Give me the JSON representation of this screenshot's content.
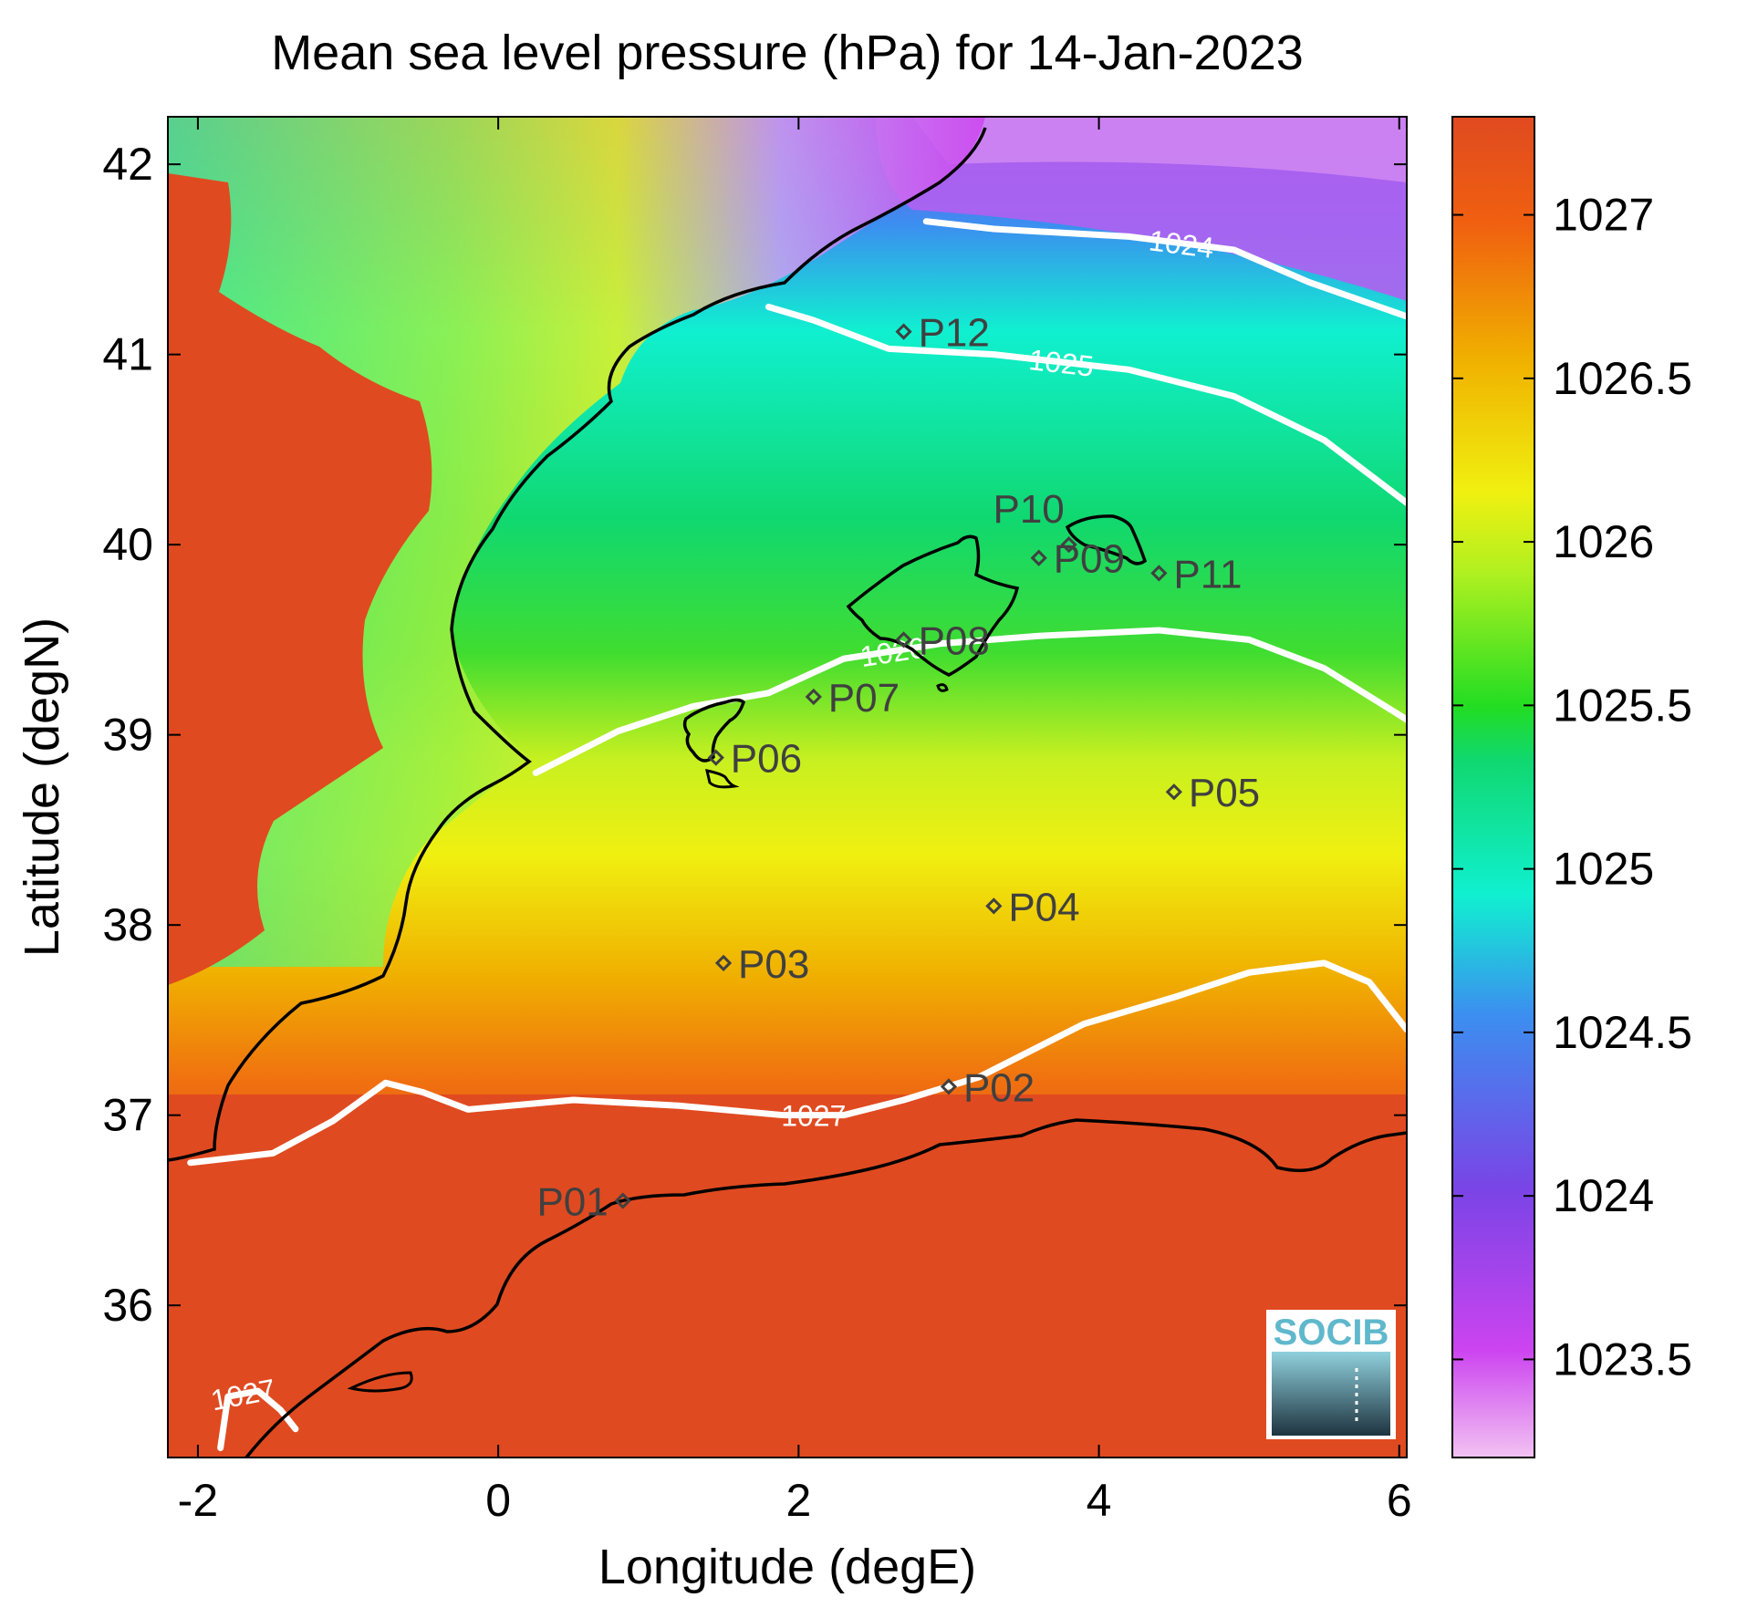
{
  "chart_data": {
    "type": "heatmap",
    "title": "Mean sea level pressure (hPa) for 14-Jan-2023",
    "xlabel": "Longitude (degE)",
    "ylabel": "Latitude (degN)",
    "xlim": [
      -2.2,
      6.05
    ],
    "ylim": [
      35.2,
      42.25
    ],
    "x_ticks": [
      -2,
      0,
      2,
      4,
      6
    ],
    "y_ticks": [
      36,
      37,
      38,
      39,
      40,
      41,
      42
    ],
    "colorbar": {
      "range": [
        1023.2,
        1027.3
      ],
      "ticks": [
        1023.5,
        1024,
        1024.5,
        1025,
        1025.5,
        1026,
        1026.5,
        1027
      ],
      "colors": [
        "#f2c2f2",
        "#cc44f0",
        "#7a44e6",
        "#3c8ef0",
        "#10f0d0",
        "#10d870",
        "#22dd22",
        "#b0f020",
        "#f0f010",
        "#f0b000",
        "#f06010",
        "#e04a20"
      ]
    },
    "contours": [
      {
        "level": 1024,
        "label": "1024",
        "points": [
          [
            2.85,
            41.7
          ],
          [
            3.3,
            41.66
          ],
          [
            4.2,
            41.62
          ],
          [
            4.9,
            41.55
          ],
          [
            5.4,
            41.38
          ],
          [
            6.05,
            41.2
          ]
        ]
      },
      {
        "level": 1025,
        "label": "1025",
        "points": [
          [
            1.8,
            41.25
          ],
          [
            2.1,
            41.18
          ],
          [
            2.6,
            41.03
          ],
          [
            3.3,
            41.0
          ],
          [
            4.2,
            40.92
          ],
          [
            4.9,
            40.78
          ],
          [
            5.5,
            40.55
          ],
          [
            6.05,
            40.22
          ]
        ]
      },
      {
        "level": 1026,
        "label": "1026",
        "points": [
          [
            0.25,
            38.8
          ],
          [
            0.8,
            39.02
          ],
          [
            1.3,
            39.15
          ],
          [
            1.8,
            39.22
          ],
          [
            2.3,
            39.4
          ],
          [
            2.95,
            39.48
          ],
          [
            3.6,
            39.52
          ],
          [
            4.4,
            39.55
          ],
          [
            5.0,
            39.5
          ],
          [
            5.5,
            39.35
          ],
          [
            6.05,
            39.08
          ]
        ]
      },
      {
        "level": 1027,
        "label": "1027",
        "points": [
          [
            -2.05,
            36.75
          ],
          [
            -1.5,
            36.8
          ],
          [
            -1.1,
            36.97
          ],
          [
            -0.75,
            37.17
          ],
          [
            -0.5,
            37.12
          ],
          [
            -0.2,
            37.03
          ],
          [
            0.5,
            37.08
          ],
          [
            1.2,
            37.05
          ],
          [
            1.9,
            37.0
          ],
          [
            2.3,
            37.0
          ],
          [
            2.7,
            37.08
          ],
          [
            3.2,
            37.2
          ],
          [
            3.9,
            37.48
          ],
          [
            4.5,
            37.62
          ],
          [
            5.0,
            37.75
          ],
          [
            5.5,
            37.8
          ],
          [
            5.8,
            37.7
          ],
          [
            6.05,
            37.45
          ]
        ]
      },
      {
        "level": 1027,
        "label": "1027",
        "points": [
          [
            -1.85,
            35.25
          ],
          [
            -1.8,
            35.52
          ],
          [
            -1.6,
            35.55
          ],
          [
            -1.45,
            35.45
          ],
          [
            -1.35,
            35.35
          ]
        ]
      }
    ],
    "stations": [
      {
        "name": "P01",
        "lon": 0.83,
        "lat": 36.55
      },
      {
        "name": "P02",
        "lon": 3.0,
        "lat": 37.15
      },
      {
        "name": "P03",
        "lon": 1.5,
        "lat": 37.8
      },
      {
        "name": "P04",
        "lon": 3.3,
        "lat": 38.1
      },
      {
        "name": "P05",
        "lon": 4.5,
        "lat": 38.7
      },
      {
        "name": "P06",
        "lon": 1.45,
        "lat": 38.88
      },
      {
        "name": "P07",
        "lon": 2.1,
        "lat": 39.2
      },
      {
        "name": "P08",
        "lon": 2.7,
        "lat": 39.5
      },
      {
        "name": "P09",
        "lon": 3.6,
        "lat": 39.93
      },
      {
        "name": "P10",
        "lon": 3.8,
        "lat": 40.0
      },
      {
        "name": "P11",
        "lon": 4.4,
        "lat": 39.85
      },
      {
        "name": "P12",
        "lon": 2.7,
        "lat": 41.12
      }
    ],
    "logo_text": "SOCIB"
  }
}
